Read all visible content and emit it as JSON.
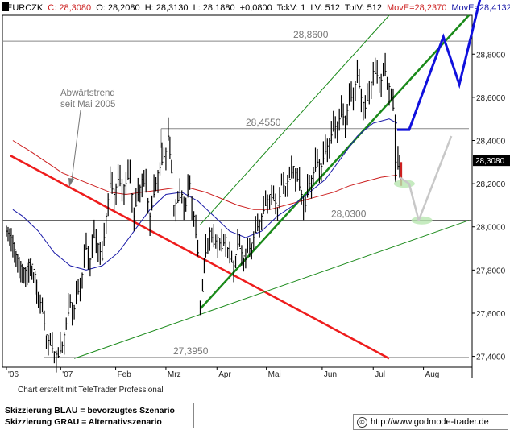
{
  "header": {
    "symbol": "EURCZK",
    "c": "C: 28,3080",
    "o": "O: 28,2080",
    "h": "H: 28,3130",
    "l": "L: 28,1880",
    "chg": "+0,0800",
    "tckv": "TckV: 1",
    "lv": "LV: 512",
    "totv": "TotV: 512",
    "move1": "MovE=28,2370",
    "move2": "MovE=28,4132"
  },
  "colors": {
    "price": "#000000",
    "ma_short": "#1a1aa8",
    "ma_long": "#cc1f1f",
    "red_trend": "#ee1c1c",
    "green_channel": "#1a8a1a",
    "blue_scenario": "#1010dd",
    "gray_scenario": "#c8c8c8",
    "target_ellipse": "#b8e6b0",
    "last_price_box": "#000000"
  },
  "chart_data": {
    "type": "line",
    "instrument": "EURCZK",
    "xlabel": "",
    "ylabel": "",
    "ylim": [
      27.35,
      28.98
    ],
    "grid": false,
    "y_ticks": [
      "28,8000",
      "28,6000",
      "28,4000",
      "28,2000",
      "28,0000",
      "27,8000",
      "27,6000",
      "27,4000"
    ],
    "y_tick_values": [
      28.8,
      28.6,
      28.4,
      28.2,
      28.0,
      27.8,
      27.6,
      27.4
    ],
    "x_ticks": [
      {
        "label": "'06",
        "x": 0
      },
      {
        "label": "'07",
        "x": 68
      },
      {
        "label": "Feb",
        "x": 137
      },
      {
        "label": "Mrz",
        "x": 200
      },
      {
        "label": "Apr",
        "x": 264
      },
      {
        "label": "Mai",
        "x": 326
      },
      {
        "label": "Jun",
        "x": 396
      },
      {
        "label": "Jul",
        "x": 460
      },
      {
        "label": "Aug",
        "x": 523
      }
    ],
    "x_range": [
      0,
      580
    ],
    "levels": [
      {
        "label": "28,8600",
        "value": 28.86
      },
      {
        "label": "28,4550",
        "value": 28.455
      },
      {
        "label": "28,0300",
        "value": 28.03
      },
      {
        "label": "27,3950",
        "value": 27.395
      }
    ],
    "last_price": "28,3080",
    "annotation": {
      "line1": "Abwärtstrend",
      "line2": "seit Mai 2005"
    },
    "price_series": [
      [
        0,
        27.98
      ],
      [
        6,
        27.95
      ],
      [
        12,
        27.87
      ],
      [
        18,
        27.82
      ],
      [
        24,
        27.8
      ],
      [
        30,
        27.85
      ],
      [
        36,
        27.78
      ],
      [
        40,
        27.7
      ],
      [
        45,
        27.6
      ],
      [
        50,
        27.5
      ],
      [
        55,
        27.45
      ],
      [
        60,
        27.42
      ],
      [
        65,
        27.4
      ],
      [
        70,
        27.45
      ],
      [
        75,
        27.55
      ],
      [
        80,
        27.65
      ],
      [
        85,
        27.62
      ],
      [
        90,
        27.7
      ],
      [
        95,
        27.78
      ],
      [
        100,
        27.9
      ],
      [
        105,
        27.85
      ],
      [
        110,
        27.95
      ],
      [
        115,
        27.92
      ],
      [
        120,
        27.85
      ],
      [
        125,
        28.05
      ],
      [
        130,
        28.2
      ],
      [
        135,
        28.15
      ],
      [
        140,
        28.22
      ],
      [
        145,
        28.18
      ],
      [
        150,
        28.2
      ],
      [
        155,
        28.25
      ],
      [
        160,
        28.05
      ],
      [
        165,
        28.15
      ],
      [
        170,
        28.22
      ],
      [
        175,
        28.18
      ],
      [
        180,
        28.05
      ],
      [
        185,
        28.15
      ],
      [
        190,
        28.25
      ],
      [
        195,
        28.3
      ],
      [
        200,
        28.35
      ],
      [
        203,
        28.42
      ],
      [
        207,
        28.25
      ],
      [
        210,
        28.1
      ],
      [
        215,
        28.12
      ],
      [
        220,
        28.15
      ],
      [
        225,
        28.1
      ],
      [
        230,
        28.2
      ],
      [
        235,
        28.05
      ],
      [
        240,
        27.88
      ],
      [
        243,
        27.65
      ],
      [
        246,
        27.7
      ],
      [
        250,
        27.88
      ],
      [
        255,
        27.98
      ],
      [
        260,
        27.92
      ],
      [
        265,
        27.95
      ],
      [
        270,
        27.9
      ],
      [
        275,
        27.95
      ],
      [
        280,
        27.85
      ],
      [
        285,
        27.82
      ],
      [
        290,
        27.92
      ],
      [
        295,
        27.88
      ],
      [
        300,
        27.85
      ],
      [
        305,
        27.9
      ],
      [
        310,
        27.95
      ],
      [
        315,
        28.0
      ],
      [
        320,
        28.05
      ],
      [
        325,
        28.1
      ],
      [
        330,
        28.15
      ],
      [
        335,
        28.12
      ],
      [
        340,
        28.1
      ],
      [
        345,
        28.18
      ],
      [
        350,
        28.2
      ],
      [
        355,
        28.22
      ],
      [
        360,
        28.28
      ],
      [
        365,
        28.22
      ],
      [
        370,
        28.15
      ],
      [
        375,
        28.1
      ],
      [
        380,
        28.2
      ],
      [
        385,
        28.25
      ],
      [
        390,
        28.3
      ],
      [
        395,
        28.28
      ],
      [
        400,
        28.35
      ],
      [
        405,
        28.4
      ],
      [
        410,
        28.45
      ],
      [
        415,
        28.48
      ],
      [
        420,
        28.52
      ],
      [
        425,
        28.5
      ],
      [
        430,
        28.58
      ],
      [
        435,
        28.62
      ],
      [
        440,
        28.7
      ],
      [
        445,
        28.6
      ],
      [
        450,
        28.55
      ],
      [
        455,
        28.62
      ],
      [
        460,
        28.72
      ],
      [
        465,
        28.7
      ],
      [
        470,
        28.68
      ],
      [
        475,
        28.72
      ],
      [
        480,
        28.65
      ],
      [
        485,
        28.55
      ],
      [
        488,
        28.3
      ],
      [
        491,
        28.28
      ],
      [
        495,
        28.2
      ]
    ],
    "ma_short": [
      [
        8,
        28.08
      ],
      [
        20,
        28.05
      ],
      [
        40,
        27.98
      ],
      [
        60,
        27.88
      ],
      [
        80,
        27.82
      ],
      [
        100,
        27.8
      ],
      [
        120,
        27.82
      ],
      [
        140,
        27.88
      ],
      [
        160,
        27.98
      ],
      [
        180,
        28.08
      ],
      [
        200,
        28.15
      ],
      [
        220,
        28.16
      ],
      [
        240,
        28.12
      ],
      [
        260,
        28.05
      ],
      [
        280,
        27.98
      ],
      [
        300,
        27.95
      ],
      [
        320,
        27.98
      ],
      [
        340,
        28.05
      ],
      [
        360,
        28.1
      ],
      [
        380,
        28.16
      ],
      [
        400,
        28.22
      ],
      [
        420,
        28.32
      ],
      [
        440,
        28.42
      ],
      [
        460,
        28.48
      ],
      [
        480,
        28.5
      ],
      [
        490,
        28.48
      ]
    ],
    "ma_long": [
      [
        8,
        28.4
      ],
      [
        30,
        28.35
      ],
      [
        50,
        28.3
      ],
      [
        70,
        28.25
      ],
      [
        90,
        28.22
      ],
      [
        110,
        28.19
      ],
      [
        130,
        28.16
      ],
      [
        150,
        28.15
      ],
      [
        170,
        28.16
      ],
      [
        190,
        28.17
      ],
      [
        210,
        28.18
      ],
      [
        230,
        28.18
      ],
      [
        250,
        28.16
      ],
      [
        270,
        28.13
      ],
      [
        290,
        28.1
      ],
      [
        310,
        28.08
      ],
      [
        330,
        28.08
      ],
      [
        350,
        28.1
      ],
      [
        370,
        28.12
      ],
      [
        390,
        28.14
      ],
      [
        410,
        28.16
      ],
      [
        430,
        28.19
      ],
      [
        450,
        28.21
      ],
      [
        470,
        28.23
      ],
      [
        490,
        28.24
      ]
    ],
    "red_trendline": [
      [
        5,
        28.33
      ],
      [
        480,
        27.39
      ]
    ],
    "green_upper_channel": [
      [
        243,
        28.01
      ],
      [
        480,
        28.98
      ]
    ],
    "green_trendline": [
      [
        243,
        27.62
      ],
      [
        580,
        28.98
      ]
    ],
    "green_lower_line": [
      [
        85,
        27.39
      ],
      [
        580,
        28.03
      ]
    ],
    "blue_scenario": [
      [
        490,
        28.45
      ],
      [
        505,
        28.45
      ],
      [
        548,
        28.88
      ],
      [
        568,
        28.66
      ],
      [
        597,
        29.1
      ]
    ],
    "gray_scenario": [
      [
        493,
        28.23
      ],
      [
        505,
        28.2
      ],
      [
        517,
        28.03
      ],
      [
        558,
        28.42
      ]
    ],
    "targets": [
      {
        "x": 499,
        "y": 28.2
      },
      {
        "x": 521,
        "y": 28.03
      }
    ]
  },
  "footer": {
    "credit": "Chart erstellt mit TeleTrader Professional",
    "legend_blue": "Skizzierung BLAU = bevorzugtes Szenario",
    "legend_gray": "Skizzierung GRAU = Alternativszenario",
    "url": "http://www.godmode-trader.de"
  }
}
